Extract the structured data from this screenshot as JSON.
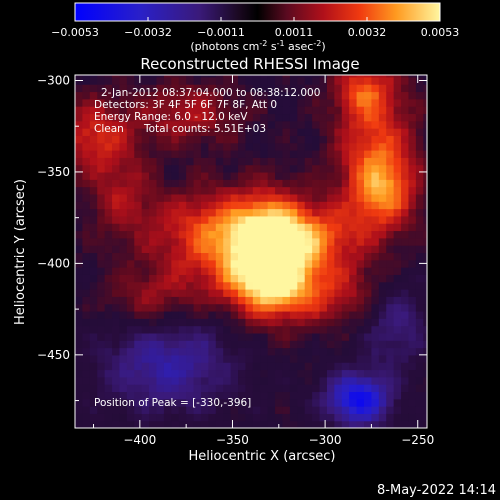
{
  "colorbar": {
    "ticks": [
      "-0.0053",
      "-0.0032",
      "-0.0011",
      "0.0011",
      "0.0032",
      "0.0053"
    ],
    "units_pre": "(photons cm",
    "units_exp1": "-2",
    "units_mid": " s",
    "units_exp2": "-1",
    "units_post": " asec",
    "units_exp3": "-2",
    "units_close": ")"
  },
  "chart_data": {
    "type": "heatmap",
    "title": "Reconstructed RHESSI Image",
    "xlabel": "Heliocentric X (arcsec)",
    "ylabel": "Heliocentric Y (arcsec)",
    "xlim": [
      -435,
      -245
    ],
    "ylim": [
      -490,
      -297
    ],
    "xticks": [
      -400,
      -350,
      -300,
      -250
    ],
    "yticks": [
      -300,
      -350,
      -400,
      -450
    ],
    "xtick_labels": [
      "−400",
      "−350",
      "−300",
      "−250"
    ],
    "ytick_labels": [
      "−300",
      "−350",
      "−400",
      "−450"
    ],
    "colorbar_range": [
      -0.0053,
      0.0053
    ],
    "colormap": "fire",
    "sources": [
      {
        "x": -330,
        "y": -396,
        "peak": 0.0053,
        "rx": 14,
        "ry": 20
      },
      {
        "x": -356,
        "y": -383,
        "peak": 0.0034,
        "rx": 26,
        "ry": 16
      },
      {
        "x": -305,
        "y": -385,
        "peak": 0.0026,
        "rx": 18,
        "ry": 12
      },
      {
        "x": -273,
        "y": -338,
        "peak": 0.0028,
        "rx": 15,
        "ry": 30
      },
      {
        "x": -268,
        "y": -360,
        "peak": 0.0022,
        "rx": 12,
        "ry": 14
      },
      {
        "x": -375,
        "y": -318,
        "peak": 0.0018,
        "rx": 20,
        "ry": 12
      },
      {
        "x": -425,
        "y": -330,
        "peak": 0.0024,
        "rx": 14,
        "ry": 14
      },
      {
        "x": -410,
        "y": -362,
        "peak": 0.0016,
        "rx": 12,
        "ry": 16
      },
      {
        "x": -395,
        "y": -420,
        "peak": 0.0015,
        "rx": 16,
        "ry": 12
      },
      {
        "x": -325,
        "y": -410,
        "peak": 0.002,
        "rx": 32,
        "ry": 12
      },
      {
        "x": -300,
        "y": -420,
        "peak": 0.0012,
        "rx": 22,
        "ry": 10
      },
      {
        "x": -280,
        "y": -305,
        "peak": 0.002,
        "rx": 10,
        "ry": 10
      },
      {
        "x": -282,
        "y": -474,
        "peak": -0.0045,
        "rx": 12,
        "ry": 10
      },
      {
        "x": -385,
        "y": -455,
        "peak": -0.0025,
        "rx": 25,
        "ry": 18
      },
      {
        "x": -262,
        "y": -432,
        "peak": -0.0018,
        "rx": 12,
        "ry": 18
      }
    ],
    "annotations": {
      "time": "2-Jan-2012 08:37:04.000 to 08:38:12.000",
      "detectors": "Detectors: 3F 4F 5F 6F 7F 8F, Att 0",
      "energy": "Energy Range: 6.0 - 12.0 keV",
      "method": "Clean",
      "counts": "Total counts: 5.51E+03",
      "peak": "Position of Peak = [-330,-396]"
    },
    "peak_position": [
      -330,
      -396
    ],
    "total_counts": 5510,
    "energy_range_kev": [
      6.0,
      12.0
    ]
  },
  "footer": {
    "timestamp": "8-May-2022 14:14"
  }
}
